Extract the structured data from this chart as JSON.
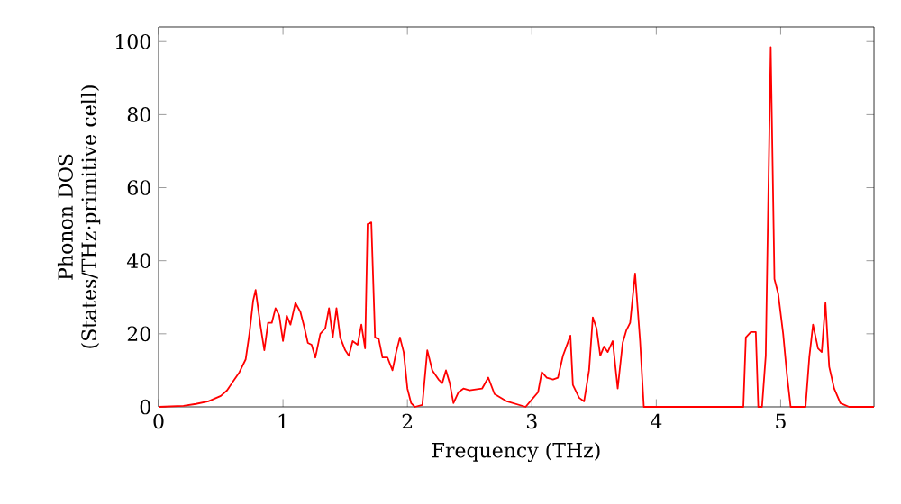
{
  "chart_data": {
    "type": "line",
    "xlabel": "Frequency (THz)",
    "ylabel": "Phonon DOS (States/THz·primitive cell)",
    "xlim": [
      0,
      5.75
    ],
    "ylim": [
      0,
      104
    ],
    "xticks": [
      0,
      1,
      2,
      3,
      4,
      5
    ],
    "yticks": [
      0,
      20,
      40,
      60,
      80,
      100
    ],
    "grid": false,
    "marker": "none",
    "line_style": "solid",
    "series": [
      {
        "color": "#ff0000",
        "x": [
          0,
          0.2,
          0.3,
          0.4,
          0.5,
          0.55,
          0.6,
          0.65,
          0.7,
          0.73,
          0.76,
          0.78,
          0.82,
          0.85,
          0.88,
          0.91,
          0.94,
          0.97,
          1.0,
          1.03,
          1.06,
          1.1,
          1.14,
          1.17,
          1.2,
          1.23,
          1.26,
          1.3,
          1.34,
          1.37,
          1.4,
          1.43,
          1.46,
          1.5,
          1.53,
          1.56,
          1.6,
          1.63,
          1.66,
          1.68,
          1.71,
          1.74,
          1.77,
          1.8,
          1.84,
          1.88,
          1.91,
          1.94,
          1.97,
          2.0,
          2.03,
          2.06,
          2.12,
          2.16,
          2.2,
          2.25,
          2.28,
          2.31,
          2.34,
          2.37,
          2.41,
          2.45,
          2.5,
          2.6,
          2.65,
          2.7,
          2.8,
          2.95,
          3.0,
          3.05,
          3.08,
          3.12,
          3.17,
          3.21,
          3.25,
          3.31,
          3.33,
          3.38,
          3.42,
          3.46,
          3.49,
          3.52,
          3.55,
          3.58,
          3.61,
          3.65,
          3.69,
          3.73,
          3.76,
          3.79,
          3.83,
          3.87,
          3.9,
          4.0,
          4.7,
          4.72,
          4.76,
          4.8,
          4.82,
          4.85,
          4.88,
          4.92,
          4.95,
          4.98,
          5.02,
          5.05,
          5.08,
          5.2,
          5.23,
          5.26,
          5.3,
          5.33,
          5.36,
          5.39,
          5.43,
          5.48,
          5.55,
          5.75
        ],
        "values": [
          0,
          0.3,
          0.8,
          1.5,
          3,
          4.5,
          7,
          9.5,
          13,
          20,
          29,
          32,
          22,
          15.5,
          23,
          23,
          27,
          25,
          18,
          25,
          22.5,
          28.5,
          26,
          22,
          17.5,
          17,
          13.5,
          20,
          21.5,
          27,
          19,
          27,
          19,
          15.5,
          14,
          18,
          17,
          22.5,
          16,
          50,
          50.5,
          19,
          18.5,
          13.5,
          13.5,
          10,
          15,
          19,
          15,
          5,
          1,
          0,
          0.5,
          15.5,
          10,
          7.5,
          6.5,
          10,
          6.5,
          1,
          4,
          5,
          4.5,
          5,
          8,
          3.5,
          1.5,
          0,
          2,
          4,
          9.5,
          8,
          7.5,
          8,
          14,
          19.5,
          6,
          2.5,
          1.5,
          10,
          24.5,
          21.5,
          14,
          16.5,
          15,
          18,
          5,
          17.5,
          21,
          23,
          36.5,
          18,
          0,
          0,
          0,
          19,
          20.5,
          20.5,
          0,
          0,
          14,
          98.5,
          35,
          31,
          20,
          9,
          0,
          0,
          13.5,
          22.5,
          16,
          15,
          28.5,
          11,
          5,
          1,
          0,
          0
        ]
      }
    ]
  }
}
